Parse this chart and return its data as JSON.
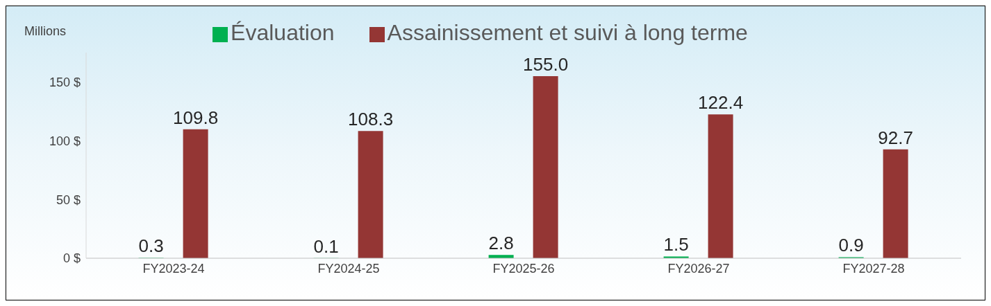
{
  "chart_data": {
    "type": "bar",
    "ylabel": "Millions",
    "categories": [
      "FY2023-24",
      "FY2024-25",
      "FY2025-26",
      "FY2026-27",
      "FY2027-28"
    ],
    "series": [
      {
        "name": "Évaluation",
        "color": "#00b050",
        "values": [
          0.3,
          0.1,
          2.8,
          1.5,
          0.9
        ],
        "value_labels": [
          "0.3",
          "0.1",
          "2.8",
          "1.5",
          "0.9"
        ]
      },
      {
        "name": "Assainissement et suivi à long terme",
        "color": "#943634",
        "values": [
          109.8,
          108.3,
          155.0,
          122.4,
          92.7
        ],
        "value_labels": [
          "109.8",
          "108.3",
          "155.0",
          "122.4",
          "92.7"
        ]
      }
    ],
    "ylim": [
      0,
      175
    ],
    "yticks": [
      {
        "value": 0,
        "label": "0 $"
      },
      {
        "value": 50,
        "label": "50 $"
      },
      {
        "value": 100,
        "label": "100 $"
      },
      {
        "value": 150,
        "label": "150 $"
      }
    ],
    "grid": false,
    "legend": "top"
  }
}
